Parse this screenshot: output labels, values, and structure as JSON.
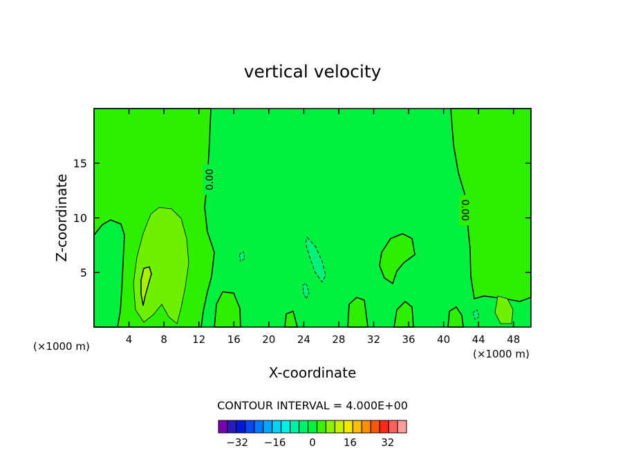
{
  "chart_data": {
    "type": "contour",
    "title": "vertical velocity",
    "xlabel": "X-coordinate",
    "ylabel": "Z-coordinate",
    "x_unit_left": "(×1000 m)",
    "x_unit_right": "(×1000 m)",
    "xlim": [
      0,
      50
    ],
    "ylim": [
      0,
      20
    ],
    "x_ticks": [
      4,
      8,
      12,
      16,
      20,
      24,
      28,
      32,
      36,
      40,
      44,
      48
    ],
    "y_ticks": [
      5,
      10,
      15
    ],
    "contour_interval_label": "CONTOUR INTERVAL = 4.000E+00",
    "contour_labels": [
      {
        "text": "0.00",
        "x": 13.2,
        "z": 13.5
      },
      {
        "text": "0.00",
        "x": 42.5,
        "z": 10.7
      }
    ],
    "colorbar": {
      "levels": [
        -40,
        -36,
        -32,
        -28,
        -24,
        -20,
        -16,
        -12,
        -8,
        -4,
        0,
        4,
        8,
        12,
        16,
        20,
        24,
        28,
        32,
        36,
        40
      ],
      "colors": [
        "#7a00b4",
        "#2a1ab8",
        "#0018dc",
        "#0a46f4",
        "#0078ff",
        "#00a6ff",
        "#00d2ff",
        "#00f2e6",
        "#00f0a6",
        "#00f06a",
        "#00f040",
        "#3cf000",
        "#8cf000",
        "#c8f000",
        "#f0e800",
        "#f8c000",
        "#ff9000",
        "#ff5800",
        "#ff2818",
        "#ff6060",
        "#ff9c9c"
      ],
      "tick_labels": [
        {
          "label": "−32",
          "value": -32
        },
        {
          "label": "−16",
          "value": -16
        },
        {
          "label": "0",
          "value": 0
        },
        {
          "label": "16",
          "value": 16
        },
        {
          "label": "32",
          "value": 32
        }
      ]
    },
    "colors": {
      "neutral": "#00f040",
      "positive_weak": "#2cf000",
      "positive_mid": "#6ef000",
      "positive_strong": "#a8f000",
      "negative_weak": "#00f07a"
    }
  }
}
